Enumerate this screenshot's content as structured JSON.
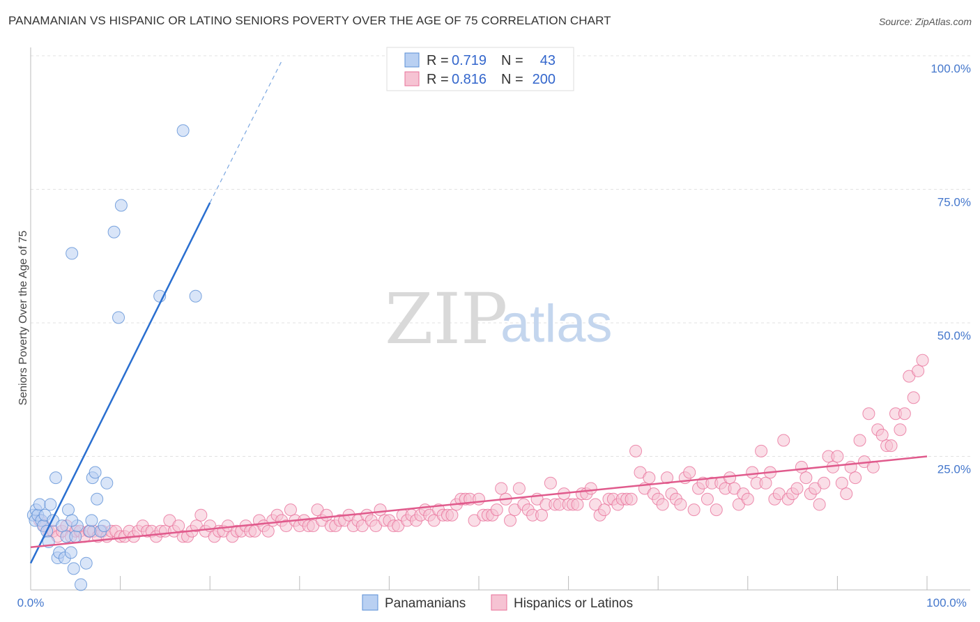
{
  "title": "PANAMANIAN VS HISPANIC OR LATINO SENIORS POVERTY OVER THE AGE OF 75 CORRELATION CHART",
  "source": "Source: ZipAtlas.com",
  "watermark": {
    "zip": "ZIP",
    "atlas": "atlas"
  },
  "colors": {
    "blue": "#5b8fd6",
    "blue_fill": "#b9d0f2",
    "pink": "#e8709a",
    "pink_fill": "#f6c3d3",
    "tick": "#4477cc"
  },
  "legend": {
    "r_label": "R =",
    "n_label": "N =",
    "series": [
      {
        "r": "0.719",
        "n": "43"
      },
      {
        "r": "0.816",
        "n": "200"
      }
    ]
  },
  "bottom_legend": [
    "Panamanians",
    "Hispanics or Latinos"
  ],
  "chart_data": {
    "type": "scatter",
    "title": "PANAMANIAN VS HISPANIC OR LATINO SENIORS POVERTY OVER THE AGE OF 75 CORRELATION CHART",
    "xlabel": "",
    "ylabel": "Seniors Poverty Over the Age of 75",
    "xlim": [
      0,
      100
    ],
    "ylim": [
      0,
      100
    ],
    "x_tick_labels": [
      "0.0%",
      "100.0%"
    ],
    "y_tick_labels": [
      "100.0%",
      "75.0%",
      "50.0%",
      "25.0%"
    ],
    "y_ticks": [
      100,
      75,
      50,
      25
    ],
    "grid": true,
    "legend_position": "top-center",
    "series": [
      {
        "name": "Panamanians",
        "color": "#5b8fd6",
        "points": [
          [
            0.3,
            14
          ],
          [
            0.5,
            13
          ],
          [
            0.6,
            15
          ],
          [
            0.8,
            14
          ],
          [
            1,
            16
          ],
          [
            1.2,
            13
          ],
          [
            1.4,
            12
          ],
          [
            1.6,
            14
          ],
          [
            1.8,
            11
          ],
          [
            2,
            9
          ],
          [
            2.2,
            16
          ],
          [
            2.5,
            13
          ],
          [
            2.8,
            21
          ],
          [
            3,
            6
          ],
          [
            3.2,
            7
          ],
          [
            3.5,
            12
          ],
          [
            3.8,
            6
          ],
          [
            4,
            10
          ],
          [
            4.2,
            15
          ],
          [
            4.5,
            7
          ],
          [
            4.8,
            4
          ],
          [
            5,
            10
          ],
          [
            5.2,
            12
          ],
          [
            4.6,
            13
          ],
          [
            4.6,
            63
          ],
          [
            5.6,
            1
          ],
          [
            6.2,
            5
          ],
          [
            6.6,
            11
          ],
          [
            6.8,
            13
          ],
          [
            6.9,
            21
          ],
          [
            7.2,
            22
          ],
          [
            7.4,
            17
          ],
          [
            7.8,
            11
          ],
          [
            8.2,
            12
          ],
          [
            8.5,
            20
          ],
          [
            9.3,
            67
          ],
          [
            9.8,
            51
          ],
          [
            10.1,
            72
          ],
          [
            14.4,
            55
          ],
          [
            17,
            86
          ],
          [
            18.4,
            55
          ]
        ],
        "trend": {
          "x": [
            0,
            20
          ],
          "y": [
            5,
            72.5
          ]
        },
        "trend_dashed": {
          "x": [
            20,
            28
          ],
          "y": [
            72.5,
            99
          ]
        }
      },
      {
        "name": "Hispanics or Latinos",
        "color": "#e8709a",
        "points": [
          [
            1,
            13
          ],
          [
            1.5,
            12
          ],
          [
            2,
            11
          ],
          [
            2.5,
            11
          ],
          [
            3,
            10
          ],
          [
            3.5,
            11
          ],
          [
            4,
            12
          ],
          [
            4.5,
            10
          ],
          [
            5,
            11
          ],
          [
            5.5,
            11
          ],
          [
            6,
            10
          ],
          [
            6.5,
            11
          ],
          [
            7,
            11
          ],
          [
            7.5,
            10
          ],
          [
            8,
            11
          ],
          [
            8.5,
            10
          ],
          [
            9,
            11
          ],
          [
            9.5,
            11
          ],
          [
            10,
            10
          ],
          [
            10.5,
            10
          ],
          [
            11,
            11
          ],
          [
            11.5,
            10
          ],
          [
            12,
            11
          ],
          [
            12.5,
            12
          ],
          [
            13,
            11
          ],
          [
            13.5,
            11
          ],
          [
            14,
            10
          ],
          [
            14.5,
            11
          ],
          [
            15,
            11
          ],
          [
            15.5,
            13
          ],
          [
            16,
            11
          ],
          [
            16.5,
            12
          ],
          [
            17,
            10
          ],
          [
            17.5,
            10
          ],
          [
            18,
            11
          ],
          [
            18.5,
            12
          ],
          [
            19,
            14
          ],
          [
            19.5,
            11
          ],
          [
            20,
            12
          ],
          [
            20.5,
            10
          ],
          [
            21,
            11
          ],
          [
            21.5,
            11
          ],
          [
            22,
            12
          ],
          [
            22.5,
            10
          ],
          [
            23,
            11
          ],
          [
            23.5,
            11
          ],
          [
            24,
            12
          ],
          [
            24.5,
            11
          ],
          [
            25,
            11
          ],
          [
            25.5,
            13
          ],
          [
            26,
            12
          ],
          [
            26.5,
            11
          ],
          [
            27,
            13
          ],
          [
            27.5,
            14
          ],
          [
            28,
            13
          ],
          [
            28.5,
            12
          ],
          [
            29,
            15
          ],
          [
            29.5,
            13
          ],
          [
            30,
            12
          ],
          [
            30.5,
            13
          ],
          [
            31,
            12
          ],
          [
            31.5,
            12
          ],
          [
            32,
            15
          ],
          [
            32.5,
            13
          ],
          [
            33,
            14
          ],
          [
            33.5,
            12
          ],
          [
            34,
            12
          ],
          [
            34.5,
            13
          ],
          [
            35,
            13
          ],
          [
            35.5,
            14
          ],
          [
            36,
            12
          ],
          [
            36.5,
            13
          ],
          [
            37,
            12
          ],
          [
            37.5,
            14
          ],
          [
            38,
            13
          ],
          [
            38.5,
            12
          ],
          [
            39,
            15
          ],
          [
            39.5,
            13
          ],
          [
            40,
            13
          ],
          [
            40.5,
            12
          ],
          [
            41,
            12
          ],
          [
            41.5,
            14
          ],
          [
            42,
            13
          ],
          [
            42.5,
            14
          ],
          [
            43,
            13
          ],
          [
            43.5,
            14
          ],
          [
            44,
            15
          ],
          [
            44.5,
            14
          ],
          [
            45,
            13
          ],
          [
            45.5,
            15
          ],
          [
            46,
            14
          ],
          [
            46.5,
            14
          ],
          [
            47,
            14
          ],
          [
            47.5,
            16
          ],
          [
            48,
            17
          ],
          [
            48.5,
            17
          ],
          [
            49,
            17
          ],
          [
            49.5,
            13
          ],
          [
            50,
            17
          ],
          [
            50.5,
            14
          ],
          [
            51,
            14
          ],
          [
            51.5,
            14
          ],
          [
            52,
            15
          ],
          [
            52.5,
            19
          ],
          [
            53,
            17
          ],
          [
            53.5,
            13
          ],
          [
            54,
            15
          ],
          [
            54.5,
            19
          ],
          [
            55,
            16
          ],
          [
            55.5,
            15
          ],
          [
            56,
            14
          ],
          [
            56.5,
            17
          ],
          [
            57,
            14
          ],
          [
            57.5,
            16
          ],
          [
            58,
            20
          ],
          [
            58.5,
            16
          ],
          [
            59,
            16
          ],
          [
            59.5,
            18
          ],
          [
            60,
            16
          ],
          [
            60.5,
            16
          ],
          [
            61,
            16
          ],
          [
            61.5,
            18
          ],
          [
            62,
            18
          ],
          [
            62.5,
            19
          ],
          [
            63,
            16
          ],
          [
            63.5,
            14
          ],
          [
            64,
            15
          ],
          [
            64.5,
            17
          ],
          [
            65,
            17
          ],
          [
            65.5,
            16
          ],
          [
            66,
            17
          ],
          [
            66.5,
            17
          ],
          [
            67,
            17
          ],
          [
            67.5,
            26
          ],
          [
            68,
            22
          ],
          [
            68.5,
            19
          ],
          [
            69,
            21
          ],
          [
            69.5,
            18
          ],
          [
            70,
            17
          ],
          [
            70.5,
            16
          ],
          [
            71,
            21
          ],
          [
            71.5,
            18
          ],
          [
            72,
            17
          ],
          [
            72.5,
            16
          ],
          [
            73,
            21
          ],
          [
            73.5,
            22
          ],
          [
            74,
            15
          ],
          [
            74.5,
            19
          ],
          [
            75,
            20
          ],
          [
            75.5,
            17
          ],
          [
            76,
            20
          ],
          [
            76.5,
            15
          ],
          [
            77,
            20
          ],
          [
            77.5,
            19
          ],
          [
            78,
            21
          ],
          [
            78.5,
            19
          ],
          [
            79,
            16
          ],
          [
            79.5,
            18
          ],
          [
            80,
            17
          ],
          [
            80.5,
            22
          ],
          [
            81,
            20
          ],
          [
            81.5,
            26
          ],
          [
            82,
            20
          ],
          [
            82.5,
            22
          ],
          [
            83,
            17
          ],
          [
            83.5,
            18
          ],
          [
            84,
            28
          ],
          [
            84.5,
            17
          ],
          [
            85,
            18
          ],
          [
            85.5,
            19
          ],
          [
            86,
            23
          ],
          [
            86.5,
            21
          ],
          [
            87,
            18
          ],
          [
            87.5,
            19
          ],
          [
            88,
            16
          ],
          [
            88.5,
            20
          ],
          [
            89,
            25
          ],
          [
            89.5,
            23
          ],
          [
            90,
            25
          ],
          [
            90.5,
            20
          ],
          [
            91,
            18
          ],
          [
            91.5,
            23
          ],
          [
            92,
            21
          ],
          [
            92.5,
            28
          ],
          [
            93,
            24
          ],
          [
            93.5,
            33
          ],
          [
            94,
            23
          ],
          [
            94.5,
            30
          ],
          [
            95,
            29
          ],
          [
            95.5,
            27
          ],
          [
            96,
            27
          ],
          [
            96.5,
            33
          ],
          [
            97,
            30
          ],
          [
            97.5,
            33
          ],
          [
            98,
            40
          ],
          [
            98.5,
            36
          ],
          [
            99,
            41
          ],
          [
            99.5,
            43
          ]
        ],
        "trend": {
          "x": [
            0,
            100
          ],
          "y": [
            8,
            25
          ]
        }
      }
    ]
  }
}
